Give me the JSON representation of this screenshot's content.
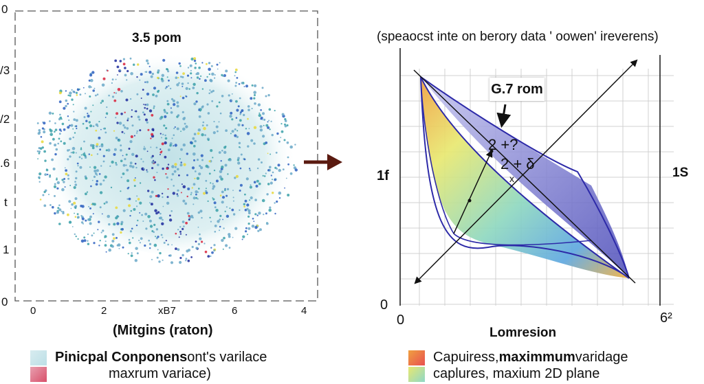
{
  "left_panel": {
    "title": "3.5 pom",
    "xlabel": "(Mitgins (raton)",
    "y_ticks": [
      "0",
      "/3",
      "/2",
      ".6",
      "t",
      "1",
      "0"
    ],
    "x_ticks": [
      "0",
      "2",
      "xB7",
      "6",
      "4"
    ],
    "colors": {
      "cloud": "#cfe6ec",
      "dark": "#1d2a9c",
      "mid": "#2b5fc0",
      "teal": "#3aa0a8",
      "red": "#d8203a",
      "yellow": "#e8d83a"
    }
  },
  "arrow": {
    "color": "#5a1a10"
  },
  "right_panel": {
    "title": "(speaocst inte on berory data ' oowen' ireverens)",
    "xlabel": "Lomresion",
    "callout": "G.7 rom",
    "formula_line1": "2 +?",
    "formula_line2": "2 + δ",
    "formula_sub": "x",
    "left_label": "1f",
    "right_label": "1S",
    "origin_label": "0",
    "x_origin": "0",
    "x_end": "6²",
    "colors": {
      "outline": "#2d2aa8",
      "grid": "#d0d0d0"
    }
  },
  "legend_left": [
    {
      "label_bold": "Pinicpal Conponens",
      "label_rest": " ont's varilace",
      "color": "#cfe6ec"
    },
    {
      "label_bold": "",
      "label_rest": "maxrum variace)",
      "color": "#d8506a"
    }
  ],
  "legend_right": [
    {
      "label_pre": "Capuiress, ",
      "label_bold": "maximmum",
      "label_rest": " varidage",
      "color": "#f0a040"
    },
    {
      "label_pre": "caplures, maxium 2D plane",
      "label_bold": "",
      "label_rest": "",
      "color": "#8fd8c8"
    }
  ]
}
